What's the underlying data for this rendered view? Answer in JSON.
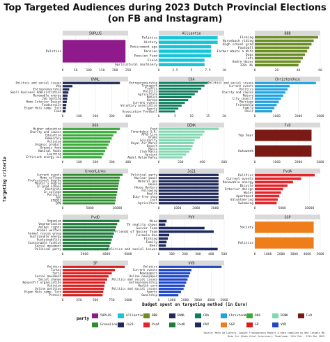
{
  "title_line1": "Top Targeted Audiences during 2023 Dutch Provincial Elections",
  "title_line2": "(on FB and Instagram)",
  "ylabel": "Targeting criteria",
  "xlabel": "Budget spent on targeting method (in Euro)",
  "legend_title": "party",
  "caption_line1": "Source: Meta Ad Library, Google Transparency Report & data compiled by Who Targets Me.",
  "caption_line2": "Data for (Data Vital Interview): Timeframe: 11th Feb - 13th Mar 2023.",
  "chart_data": [
    {
      "type": "bar",
      "party": "50PLUS",
      "color": "#8E1A8C",
      "categories": [
        "Politics"
      ],
      "values": [
        240
      ],
      "xlim": [
        0,
        250
      ],
      "ticks": [
        0,
        50,
        100,
        150,
        200,
        250
      ]
    },
    {
      "type": "bar",
      "party": "Alliantie",
      "color": "#1AC4D8",
      "categories": [
        "Politics",
        "History",
        "Retirement age",
        "Pension",
        "Pension Fund",
        "Field",
        "Agricultural machinery"
      ],
      "values": [
        9,
        9,
        8,
        8,
        8,
        7,
        7
      ],
      "xlim": [
        0,
        10
      ],
      "ticks": [
        0,
        2.5,
        5,
        7.5,
        10
      ]
    },
    {
      "type": "bar",
      "party": "BBB",
      "color": "#6B8E23",
      "categories": [
        "Fishing",
        "Horseback riding",
        "High school grad",
        "Football",
        "Farmer Wants a Wife",
        "Dogs",
        "Cats",
        "Andre Hazes",
        "120+ KL"
      ],
      "values": [
        58,
        54,
        52,
        50,
        48,
        46,
        44,
        42,
        40
      ],
      "xlim": [
        0,
        60
      ],
      "ticks": [
        0,
        20,
        40,
        60
      ]
    },
    {
      "type": "bar",
      "party": "BVNL",
      "color": "#1F2A57",
      "categories": [
        "Politics and social issues",
        "Vdp",
        "Entrepreneurship",
        "Small Business Administration",
        "Renewable energy",
        "Job hunting",
        "Home Interior Design",
        "Foodservice",
        "Eigen Huis samp; Tuin",
        "Food"
      ],
      "values": [
        350,
        60,
        40,
        35,
        30,
        28,
        25,
        22,
        20,
        18
      ],
      "xlim": [
        0,
        400
      ],
      "ticks": [
        0,
        100,
        200,
        300,
        400
      ]
    },
    {
      "type": "bar",
      "party": "CDA",
      "color": "#0C7E5C",
      "categories": [
        "Entrepreneurship",
        "Transport",
        "Traffic",
        "Politics",
        "Agriculture",
        "Nature",
        "Korena",
        "Current events",
        "Voluntary association",
        "Sports",
        "Association Football"
      ],
      "values": [
        15,
        14,
        13,
        12,
        11,
        10,
        9,
        8,
        7,
        6,
        5
      ],
      "xlim": [
        0,
        20
      ],
      "ticks": [
        0,
        5,
        10,
        15,
        20
      ]
    },
    {
      "type": "bar",
      "party": "ChristenUnie",
      "color": "#1EA2E0",
      "categories": [
        "Politics and social issues",
        "Current events",
        "Politics",
        "Charity and causes",
        "Nature",
        "City council",
        "Marriage",
        "Friendship",
        "Family",
        "Choir"
      ],
      "values": [
        2800,
        1600,
        1500,
        1400,
        1300,
        1200,
        1100,
        1000,
        900,
        800
      ],
      "xlim": [
        0,
        3000
      ],
      "ticks": [
        0,
        1000,
        2000,
        3000
      ]
    },
    {
      "type": "bar",
      "party": "D66",
      "color": "#3DAA3D",
      "categories": [
        "Higher education",
        "Charity and causes",
        "Education",
        "Democracy",
        "Activism",
        "Organic product",
        "Organic food",
        "Natural foods",
        "Learning",
        "Efficient energy use"
      ],
      "values": [
        350,
        330,
        310,
        300,
        290,
        280,
        270,
        260,
        250,
        240
      ],
      "xlim": [
        0,
        400
      ],
      "ticks": [
        0,
        100,
        200,
        300,
        400
      ]
    },
    {
      "type": "bar",
      "party": "DENK",
      "color": "#7FD8B0",
      "categories": [
        "Food",
        "Fenerbahce S.K.",
        "AFAS Live",
        "Drake",
        "Solidarity",
        "Royal Air Maroc",
        "Desert",
        "Music",
        "Club Massa",
        "Apricot",
        "Abdel Halim Hafez"
      ],
      "values": [
        550,
        420,
        400,
        380,
        330,
        320,
        310,
        300,
        280,
        250,
        220
      ],
      "xlim": [
        0,
        600
      ],
      "ticks": [
        0,
        200,
        400,
        600
      ]
    },
    {
      "type": "bar",
      "party": "FvD",
      "color": "#7A1A14",
      "categories": [
        "Top Gear",
        "Autoweek"
      ],
      "values": [
        2600,
        2600
      ],
      "xlim": [
        0,
        3000
      ],
      "ticks": [
        0,
        1000,
        2000,
        3000
      ]
    },
    {
      "type": "bar",
      "party": "GroenLinks",
      "color": "#2E8B2E",
      "categories": [
        "Current events",
        "Home college",
        "Professional degree",
        "Master's degree",
        "In grad school",
        "Doctorate",
        "In college",
        "Politics",
        "AOC",
        "STUDIJ",
        "DFW"
      ],
      "values": [
        11000,
        10500,
        10400,
        10300,
        10200,
        10100,
        10000,
        9900,
        9800,
        9700,
        9600
      ],
      "xlim": [
        0,
        12000
      ],
      "ticks": [
        0,
        5000,
        10000
      ]
    },
    {
      "type": "bar",
      "party": "Ja21",
      "color": "#202A5A",
      "categories": [
        "Political party",
        "Nuclear power",
        "Natural gas",
        "House",
        "House Hunters",
        "Following",
        "Health",
        "Duty-free shop",
        "Cost",
        "Agriculture"
      ],
      "values": [
        3200,
        3200,
        3200,
        3200,
        3200,
        3200,
        3200,
        3200,
        3200,
        3200
      ],
      "xlim": [
        0,
        3500
      ],
      "ticks": [
        0,
        1000,
        2000,
        3000
      ]
    },
    {
      "type": "bar",
      "party": "PvdA",
      "color": "#E3262C",
      "categories": [
        "Politics",
        "Current events",
        "Renewable energy",
        "Bicycle",
        "Interior design",
        "Water",
        "Apartment",
        "Volunteering",
        "Swimming"
      ],
      "values": [
        11000,
        8500,
        7000,
        6000,
        5200,
        4800,
        4500,
        4200,
        4000
      ],
      "xlim": [
        0,
        12000
      ],
      "ticks": [
        0,
        5000,
        10000
      ]
    },
    {
      "type": "bar",
      "party": "PvdD",
      "color": "#1E7B3A",
      "categories": [
        "Veganism",
        "Vegetarianism",
        "Animal rights",
        "Animal welfare",
        "Animal rescue group",
        "Sustainable energy",
        "Sustainability",
        "Sustainable fashion",
        "Social movement",
        "Political party"
      ],
      "values": [
        5200,
        5000,
        4900,
        4800,
        4700,
        4600,
        4500,
        4400,
        4300,
        4200
      ],
      "xlim": [
        0,
        6000
      ],
      "ticks": [
        0,
        2000,
        4000,
        6000
      ]
    },
    {
      "type": "bar",
      "party": "PVV",
      "color": "#1E2A5E",
      "categories": [
        "Mine",
        "TV reality shows",
        "Soccer Team",
        "Friends of Soccer Team",
        "Formula One",
        "Fishing",
        "Family",
        "Beer",
        "Politics and social issues"
      ],
      "values": [
        60,
        50,
        350,
        420,
        80,
        70,
        60,
        55,
        450
      ],
      "xlim": [
        0,
        500
      ],
      "ticks": [
        0,
        100,
        200,
        300,
        400,
        500
      ]
    },
    {
      "type": "bar",
      "party": "SGP",
      "color": "#EF7D1A",
      "categories": [
        "Society",
        "Politics"
      ],
      "values": [
        4500,
        4500
      ],
      "xlim": [
        0,
        5000
      ],
      "ticks": [
        0,
        1000,
        2000,
        3000,
        4000,
        5000
      ]
    },
    {
      "type": "bar",
      "party": "SP",
      "color": "#D81E1E",
      "categories": [
        "Politics",
        "Turkey",
        "Syria",
        "Social movement",
        "Social change",
        "Nonprofit organization",
        "Activism",
        "Online petition",
        "Eigen Huis samp; Tuin",
        "Protest"
      ],
      "values": [
        950,
        800,
        750,
        700,
        680,
        650,
        640,
        630,
        620,
        610
      ],
      "xlim": [
        0,
        1000
      ],
      "ticks": [
        0,
        250,
        500,
        750,
        1000
      ]
    },
    {
      "type": "bar",
      "party": "VVD",
      "color": "#1D47C8",
      "categories": [
        "Politics",
        "Current events",
        "Newspapers",
        "Online newspaper",
        "Politics and social issues",
        "Entrepreneurship",
        "Health care",
        "Politics and social issues",
        "Sports",
        "Ownership"
      ],
      "values": [
        4800,
        2500,
        2400,
        2300,
        2200,
        2100,
        2000,
        1900,
        1700,
        1500
      ],
      "xlim": [
        0,
        5000
      ],
      "ticks": [
        0,
        1000,
        2000,
        3000,
        4000,
        5000
      ]
    }
  ],
  "legend": [
    {
      "name": "50PLUS",
      "color": "#8E1A8C"
    },
    {
      "name": "Alliantie",
      "color": "#1AC4D8"
    },
    {
      "name": "BBB",
      "color": "#6B8E23"
    },
    {
      "name": "BVNL",
      "color": "#1F2A57"
    },
    {
      "name": "CDA",
      "color": "#0C7E5C"
    },
    {
      "name": "ChristenUnie",
      "color": "#1EA2E0"
    },
    {
      "name": "D66",
      "color": "#3DAA3D"
    },
    {
      "name": "DENK",
      "color": "#7FD8B0"
    },
    {
      "name": "FvD",
      "color": "#7A1A14"
    },
    {
      "name": "GroenLinks",
      "color": "#2E8B2E"
    },
    {
      "name": "Ja21",
      "color": "#202A5A"
    },
    {
      "name": "PvdA",
      "color": "#E3262C"
    },
    {
      "name": "PvdD",
      "color": "#1E7B3A"
    },
    {
      "name": "PVV",
      "color": "#1E2A5E"
    },
    {
      "name": "SGP",
      "color": "#EF7D1A"
    },
    {
      "name": "SP",
      "color": "#D81E1E"
    },
    {
      "name": "VVD",
      "color": "#1D47C8"
    }
  ]
}
